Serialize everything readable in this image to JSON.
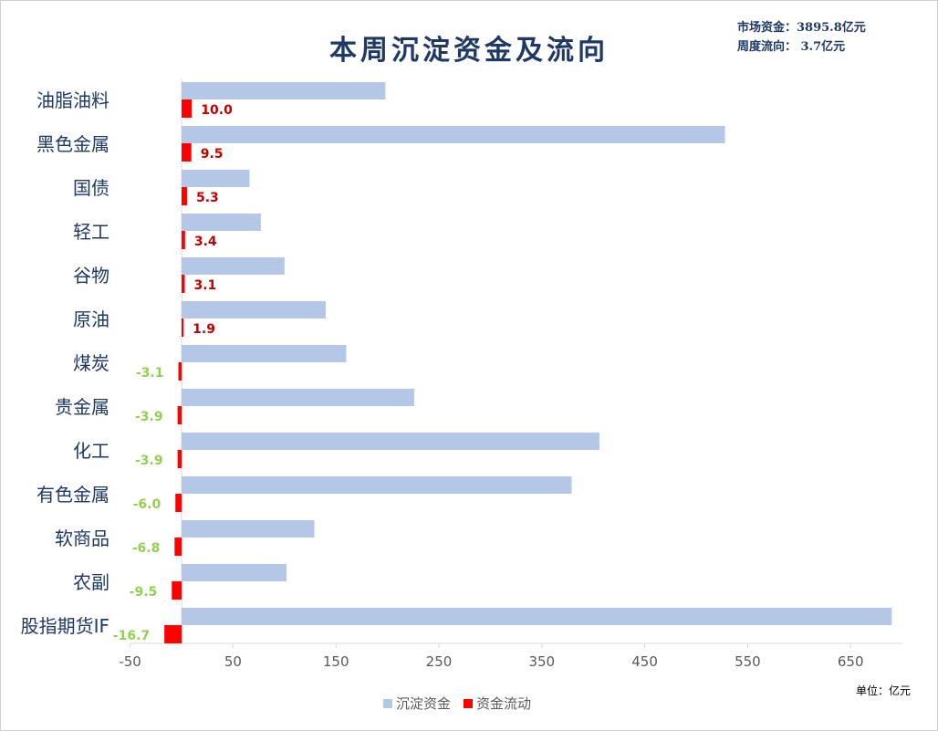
{
  "title": "本周沉淀资金及流向",
  "info": {
    "market_funds": "市场资金：3895.8亿元",
    "weekly_flow": "周度流向：  3.7亿元"
  },
  "unit_label": "单位：亿元",
  "colors": {
    "settled": "#b4c7e7",
    "flow": "#ff0000",
    "positive_label": "#c00000",
    "negative_label": "#92d050",
    "axis": "#d9d9d9"
  },
  "chart_data": {
    "type": "bar",
    "orientation": "horizontal",
    "title": "本周沉淀资金及流向",
    "categories": [
      "油脂油料",
      "黑色金属",
      "国债",
      "轻工",
      "谷物",
      "原油",
      "煤炭",
      "贵金属",
      "化工",
      "有色金属",
      "软商品",
      "农副",
      "股指期货IF"
    ],
    "series": [
      {
        "name": "沉淀资金",
        "values": [
          198,
          528,
          66,
          77,
          100,
          140,
          160,
          226,
          406,
          379,
          129,
          102,
          690
        ]
      },
      {
        "name": "资金流动",
        "values": [
          10.0,
          9.5,
          5.3,
          3.4,
          3.1,
          1.9,
          -3.1,
          -3.9,
          -3.9,
          -6.0,
          -6.8,
          -9.5,
          -16.7
        ]
      }
    ],
    "data_labels": [
      "10.0",
      "9.5",
      "5.3",
      "3.4",
      "3.1",
      "1.9",
      "-3.1",
      "-3.9",
      "-3.9",
      "-6.0",
      "-6.8",
      "-9.5",
      "-16.7"
    ],
    "xlim": [
      -50,
      700
    ],
    "x_ticks": [
      "-50",
      "50",
      "150",
      "250",
      "350",
      "450",
      "550",
      "650"
    ],
    "tick_values": [
      -50,
      50,
      150,
      250,
      350,
      450,
      550,
      650
    ],
    "legend_position": "bottom",
    "grid": false
  }
}
